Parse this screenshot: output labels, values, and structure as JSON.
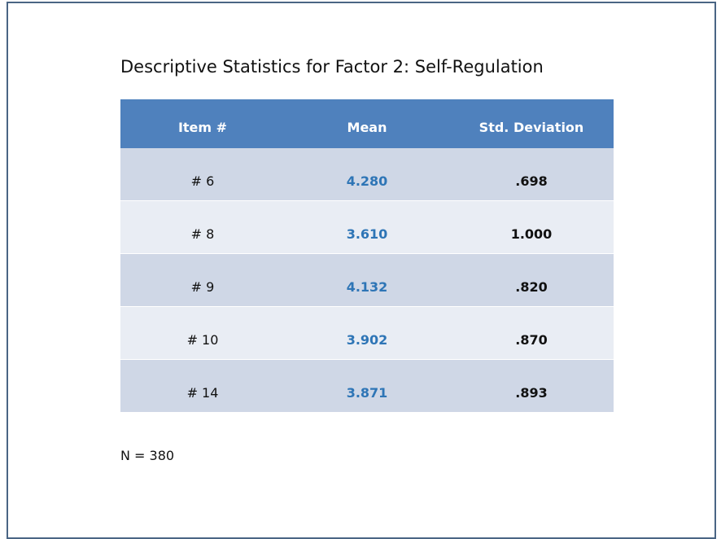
{
  "title": "Descriptive Statistics for Factor 2: Self-Regulation",
  "table": {
    "header": [
      "Item #",
      "Mean",
      "Std. Deviation"
    ],
    "rows": [
      [
        "# 6",
        "4.280",
        ".698"
      ],
      [
        "# 8",
        "3.610",
        "1.000"
      ],
      [
        "# 9",
        "4.132",
        ".820"
      ],
      [
        "# 10",
        "3.902",
        ".870"
      ],
      [
        "# 14",
        "3.871",
        ".893"
      ]
    ]
  },
  "note": "N = 380"
}
